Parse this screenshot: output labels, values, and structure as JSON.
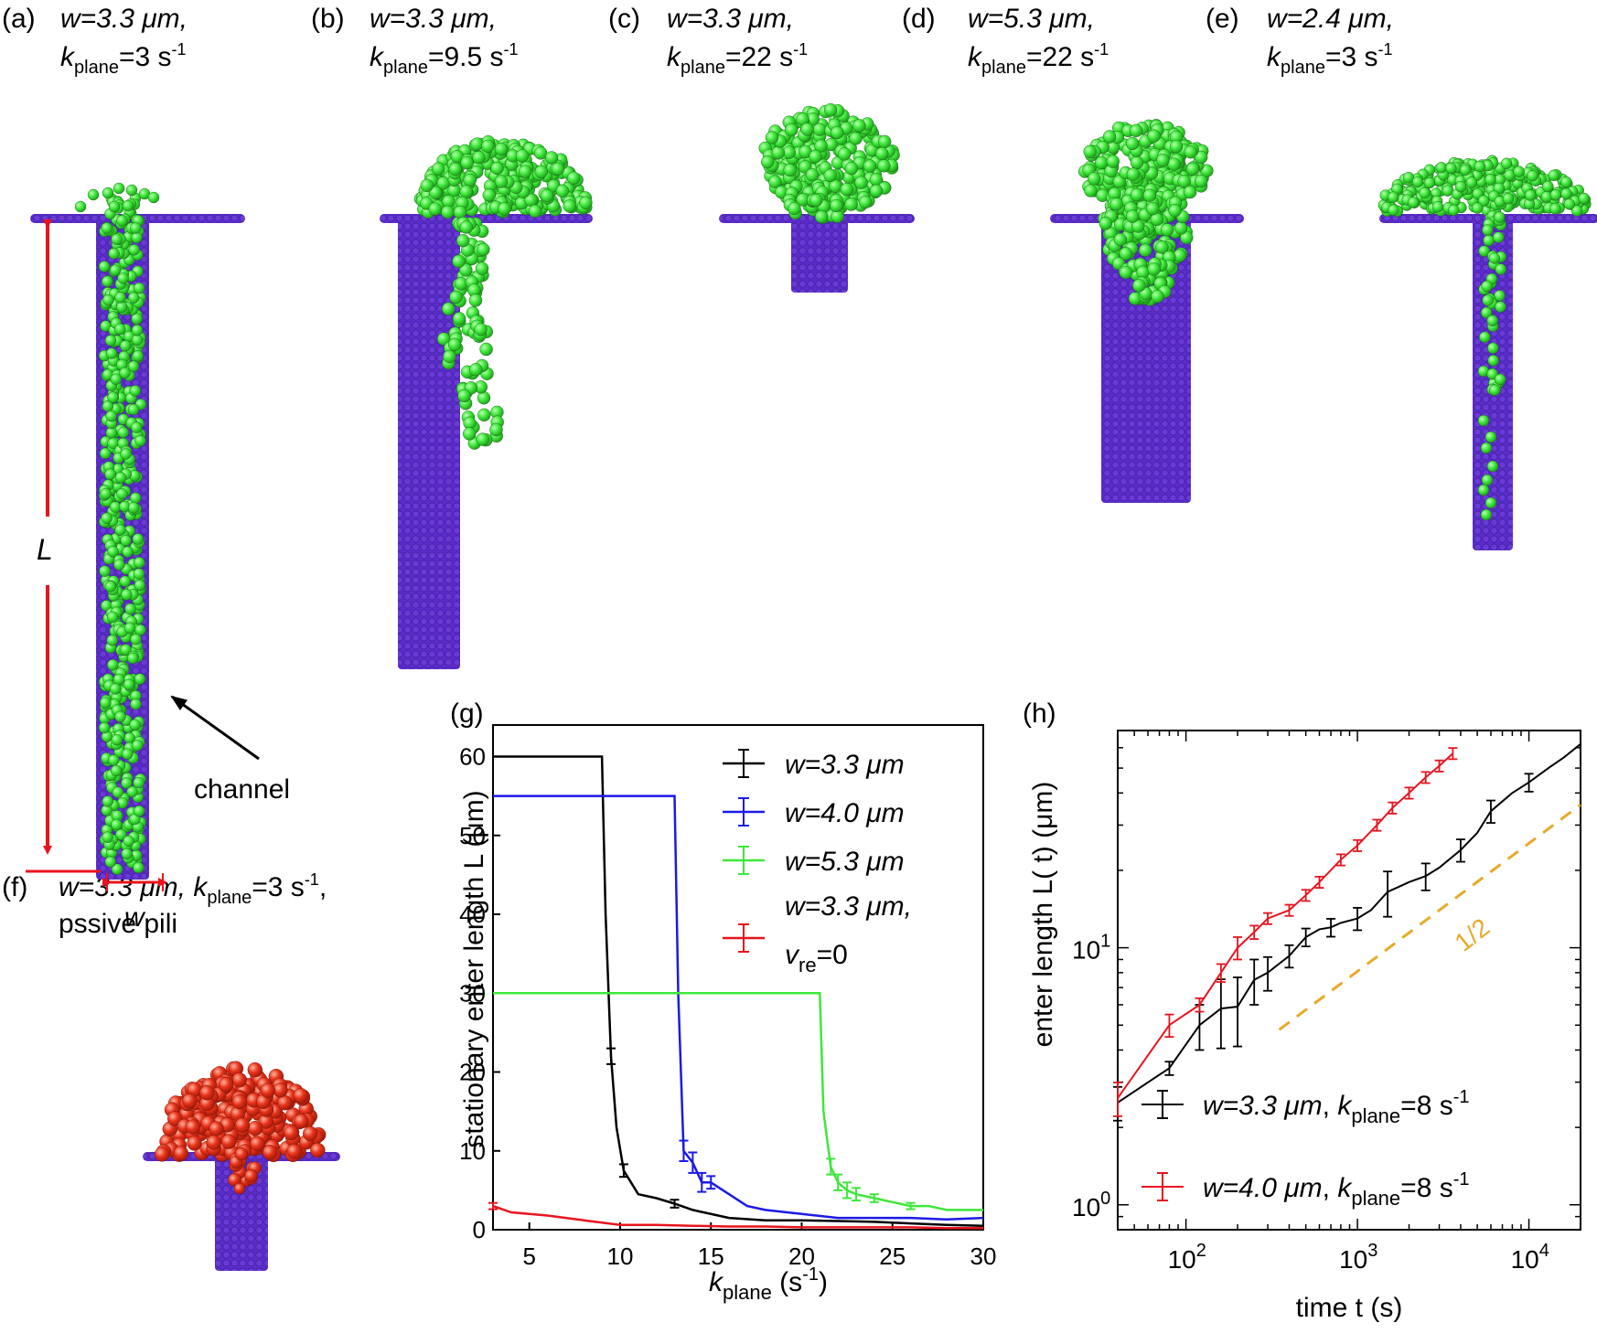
{
  "colors": {
    "channel": "#5b2ccc",
    "channel_dark": "#3a1a8a",
    "bacteria": "#3ee83a",
    "bacteria_dark": "#1f9a1c",
    "passive": "#e8321a",
    "annotation": "#e8141e",
    "slope_line": "#e8a92a"
  },
  "panels": {
    "a": {
      "label": "(a)",
      "line1": "w=3.3 μm,",
      "line2": "k",
      "sub": "plane",
      "tail": "=3 s",
      "sup": "-1"
    },
    "b": {
      "label": "(b)",
      "line1": "w=3.3 μm,",
      "line2": "k",
      "sub": "plane",
      "tail": "=9.5 s",
      "sup": "-1"
    },
    "c": {
      "label": "(c)",
      "line1": "w=3.3 μm,",
      "line2": "k",
      "sub": "plane",
      "tail": "=22 s",
      "sup": "-1"
    },
    "d": {
      "label": "(d)",
      "line1": "w=5.3 μm,",
      "line2": "k",
      "sub": "plane",
      "tail": "=22 s",
      "sup": "-1"
    },
    "e": {
      "label": "(e)",
      "line1": "w=2.4 μm,",
      "line2": "k",
      "sub": "plane",
      "tail": "=3 s",
      "sup": "-1"
    },
    "f": {
      "label": "(f)",
      "line1a": "w=3.3 μm, k",
      "sub": "plane",
      "tail": "=3 s",
      "sup": "-1",
      "tail2": ",",
      "line2": "pssive pili"
    }
  },
  "annotations": {
    "L": "L",
    "w": "w",
    "channel": "channel"
  },
  "chart_data": [
    {
      "id": "g",
      "label": "(g)",
      "type": "line",
      "xlabel": "k",
      "xlabel_sub": "plane",
      "xlabel_unit": " (s",
      "xlabel_sup": "-1",
      "xlabel_end": ")",
      "ylabel": "stationary enter length  L (μm)",
      "xlim": [
        3,
        30
      ],
      "ylim": [
        0,
        64
      ],
      "xticks": [
        "5",
        "10",
        "15",
        "20",
        "25",
        "30"
      ],
      "xtick_values": [
        5,
        10,
        15,
        20,
        25,
        30
      ],
      "yticks": [
        "0",
        "10",
        "20",
        "30",
        "40",
        "50",
        "60"
      ],
      "ytick_values": [
        0,
        10,
        20,
        30,
        40,
        50,
        60
      ],
      "legend": {
        "position": "top-right"
      },
      "series": [
        {
          "name": "w=3.3 μm",
          "color": "#000000",
          "x": [
            3,
            9.0,
            9.2,
            9.5,
            9.8,
            10.2,
            11,
            12,
            13,
            14,
            16,
            18,
            20,
            22,
            24,
            26,
            28,
            30
          ],
          "y": [
            60,
            60,
            40,
            22,
            13,
            7.5,
            4.5,
            4.0,
            3.3,
            2.5,
            1.5,
            1.2,
            1.2,
            1.1,
            1.0,
            0.8,
            0.6,
            0.5
          ],
          "err_x": [
            9.5,
            10.2,
            13
          ],
          "err_y": [
            22,
            7.5,
            3.3
          ],
          "err_h": [
            1.0,
            0.8,
            0.5
          ]
        },
        {
          "name": "w=4.0 μm",
          "color": "#1a1ae6",
          "x": [
            3,
            13.0,
            13.2,
            13.5,
            14.0,
            14.5,
            15.0,
            16,
            17,
            18,
            20,
            22,
            24,
            26,
            28,
            30
          ],
          "y": [
            55,
            55,
            30,
            10,
            8.5,
            6.0,
            6.0,
            4.5,
            3.0,
            2.5,
            2.0,
            1.5,
            1.5,
            1.5,
            1.3,
            1.5
          ],
          "err_x": [
            13.5,
            14.0,
            14.5,
            15.0
          ],
          "err_y": [
            10,
            8.5,
            6.0,
            6.0
          ],
          "err_h": [
            1.3,
            1.3,
            1.2,
            0.8
          ]
        },
        {
          "name": "w=5.3 μm",
          "color": "#3ee83a",
          "x": [
            3,
            21.0,
            21.2,
            21.6,
            22.0,
            22.5,
            23.0,
            24,
            25,
            26,
            27,
            28,
            29,
            30
          ],
          "y": [
            30,
            30,
            15,
            8.0,
            6.0,
            5.0,
            4.5,
            4.0,
            3.5,
            3.0,
            3.0,
            2.5,
            2.5,
            2.5
          ],
          "err_x": [
            21.6,
            22.0,
            22.5,
            23.0,
            24,
            26
          ],
          "err_y": [
            8.0,
            6.0,
            5.0,
            4.5,
            4.0,
            3.0
          ],
          "err_h": [
            1.0,
            1.0,
            1.0,
            0.8,
            0.5,
            0.4
          ]
        },
        {
          "name": "w=3.3 μm, v",
          "name_sub": "re",
          "name_end": "=0",
          "color": "#e8141e",
          "x": [
            3,
            4,
            6,
            8,
            10,
            12,
            14,
            16,
            18,
            20,
            22,
            24,
            26,
            28,
            30
          ],
          "y": [
            3.0,
            2.2,
            1.8,
            1.2,
            0.6,
            0.6,
            0.5,
            0.4,
            0.4,
            0.3,
            0.3,
            0.3,
            0.3,
            0.2,
            0.2
          ],
          "err_x": [
            3
          ],
          "err_y": [
            3.0
          ],
          "err_h": [
            0.4
          ]
        }
      ]
    },
    {
      "id": "h",
      "label": "(h)",
      "type": "line",
      "xscale": "log",
      "yscale": "log",
      "xlabel": "time  t (s)",
      "ylabel": "enter length  L( t) (μm)",
      "xlim": [
        40,
        20000
      ],
      "ylim": [
        0.8,
        70
      ],
      "xticks_base": "10",
      "xticks_exp": [
        "2",
        "3",
        "4"
      ],
      "xtick_values": [
        100,
        1000,
        10000
      ],
      "yticks_base": "10",
      "yticks_exp": [
        "0",
        "1"
      ],
      "ytick_values": [
        1,
        10
      ],
      "slope_label": "1/2",
      "slope_line": {
        "x": [
          350,
          20000
        ],
        "y": [
          4.8,
          36
        ]
      },
      "legend": {
        "position": "bottom-right"
      },
      "series": [
        {
          "name": "w=3.3 μm, k",
          "name_sub": "plane",
          "name_end": "=8 s",
          "name_sup": "-1",
          "color": "#000000",
          "x": [
            40,
            80,
            120,
            160,
            200,
            250,
            300,
            400,
            500,
            600,
            700,
            800,
            1000,
            1200,
            1500,
            2000,
            2500,
            3000,
            4000,
            5000,
            6000,
            8000,
            10000,
            13000,
            16000,
            20000
          ],
          "y": [
            2.5,
            3.4,
            5.0,
            5.8,
            5.9,
            7.5,
            8.0,
            9.3,
            11.0,
            11.8,
            12.0,
            12.5,
            13.0,
            14.0,
            16.5,
            18.0,
            19.0,
            20.5,
            24.0,
            28.0,
            34.0,
            40.0,
            44.0,
            50.0,
            55.0,
            62.0
          ],
          "err_x": [
            40,
            80,
            120,
            160,
            200,
            250,
            300,
            400,
            500,
            700,
            1000,
            1500,
            2500,
            4000,
            6000,
            10000
          ],
          "err_y": [
            2.5,
            3.4,
            5.0,
            5.8,
            5.9,
            7.5,
            8.0,
            9.3,
            11.0,
            12.0,
            13.0,
            16.5,
            19.0,
            24.0,
            34.0,
            44.0
          ],
          "err_f": [
            0.15,
            0.06,
            0.2,
            0.3,
            0.3,
            0.2,
            0.15,
            0.1,
            0.08,
            0.08,
            0.1,
            0.2,
            0.12,
            0.1,
            0.1,
            0.08
          ]
        },
        {
          "name": "w=4.0 μm, k",
          "name_sub": "plane",
          "name_end": "=8 s",
          "name_sup": "-1",
          "color": "#e8141e",
          "x": [
            40,
            80,
            120,
            160,
            200,
            250,
            300,
            400,
            500,
            600,
            800,
            1000,
            1300,
            1600,
            2000,
            2500,
            3000,
            3600
          ],
          "y": [
            2.6,
            5.0,
            6.0,
            8.0,
            10.0,
            11.5,
            13.0,
            14.0,
            16.0,
            18.0,
            22.0,
            25.0,
            30.0,
            35.0,
            40.0,
            46.0,
            51.0,
            57.0
          ],
          "err_x": [
            40,
            80,
            120,
            160,
            200,
            250,
            300,
            400,
            500,
            600,
            800,
            1000,
            1300,
            1600,
            2000,
            2500,
            3000,
            3600
          ],
          "err_y": [
            2.6,
            5.0,
            6.0,
            8.0,
            10.0,
            11.5,
            13.0,
            14.0,
            16.0,
            18.0,
            22.0,
            25.0,
            30.0,
            35.0,
            40.0,
            46.0,
            51.0,
            57.0
          ],
          "err_f": [
            0.15,
            0.1,
            0.06,
            0.08,
            0.1,
            0.06,
            0.05,
            0.05,
            0.05,
            0.05,
            0.05,
            0.05,
            0.05,
            0.05,
            0.05,
            0.05,
            0.05,
            0.05
          ]
        }
      ]
    }
  ]
}
